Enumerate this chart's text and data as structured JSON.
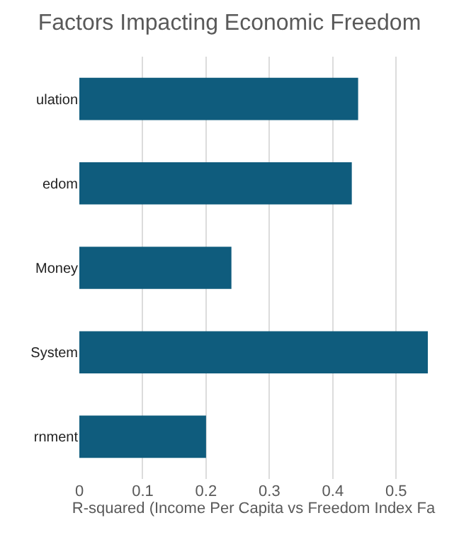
{
  "chart_data": {
    "type": "bar",
    "orientation": "horizontal",
    "title": "Factors Impacting Economic Freedom",
    "xlabel": "R-squared (Income Per Capita vs Freedom Index Fa",
    "categories": [
      "ulation",
      "edom",
      "Money",
      "System",
      "rnment"
    ],
    "values": [
      0.44,
      0.43,
      0.24,
      0.55,
      0.2
    ],
    "color": "#0f5c7d",
    "xlim": [
      0,
      0.55
    ],
    "xticks": [
      0,
      0.1,
      0.2,
      0.3,
      0.4,
      0.5
    ],
    "grid": "x"
  }
}
